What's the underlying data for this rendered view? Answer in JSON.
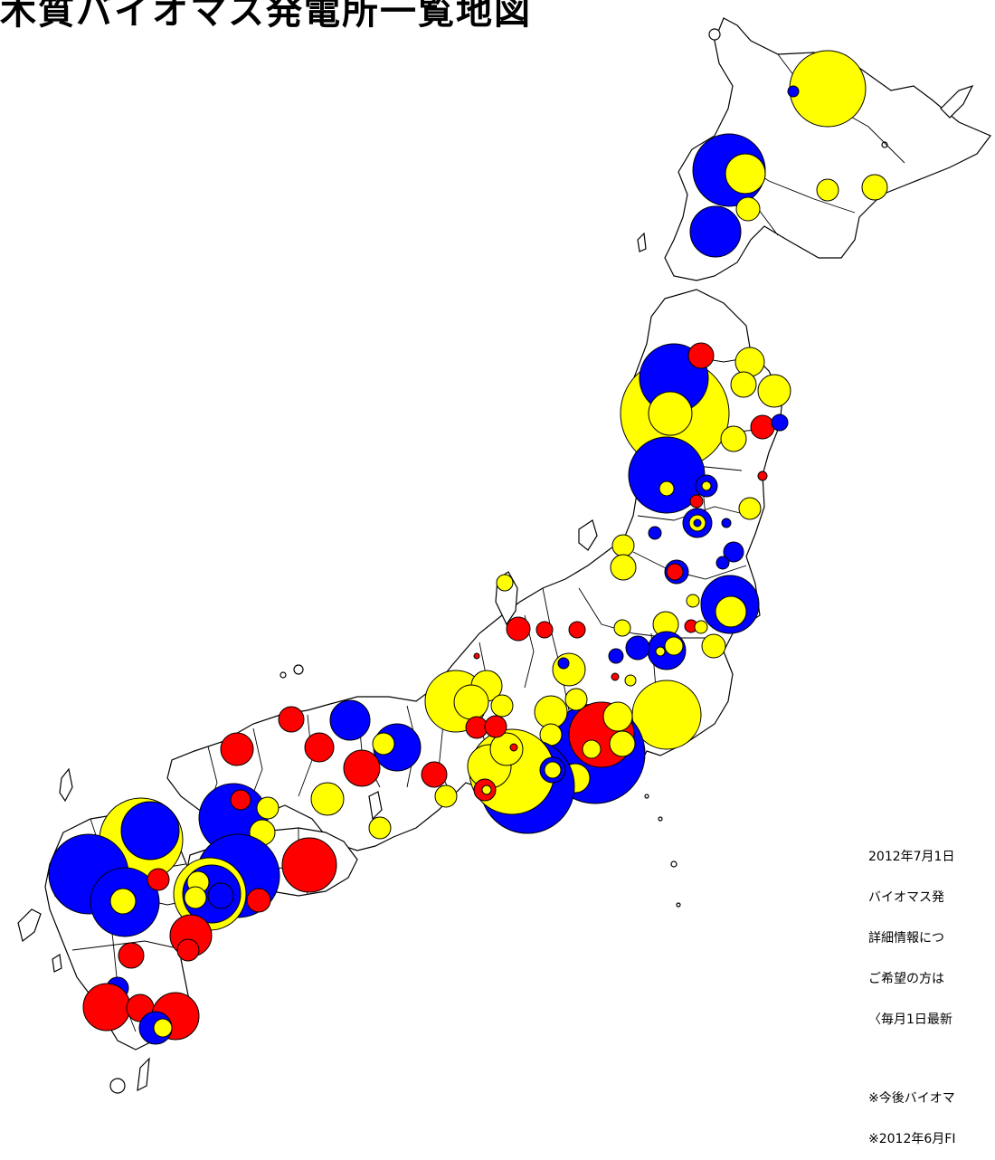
{
  "title": "木質バイオマス発電所一覧地図",
  "colors": {
    "red": "#ff0000",
    "blue": "#0000ff",
    "yellow": "#ffff00",
    "land_outline": "#000000",
    "background": "#ffffff"
  },
  "notes": {
    "line1": "2012年7月1日",
    "line2": "バイオマス発",
    "line3": "詳細情報につ",
    "line4": "ご希望の方は",
    "line5": "〈毎月1日最新",
    "line6": "※今後バイオマ",
    "line7": "※2012年6月FI"
  }
}
